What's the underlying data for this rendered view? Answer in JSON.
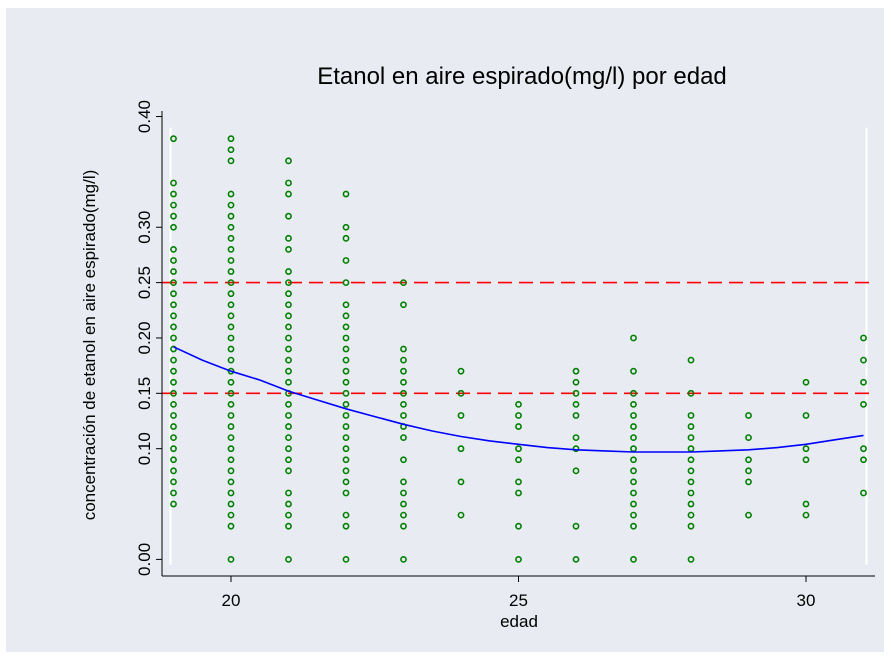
{
  "chart_data": {
    "type": "scatter",
    "title": "Etanol en aire espirado(mg/l) por edad",
    "xlabel": "edad",
    "ylabel": "concentración de etanol en aire espirado(mg/l)",
    "xlim": [
      18.8,
      31.2
    ],
    "ylim": [
      -0.015,
      0.405
    ],
    "x_ticks": [
      20,
      25,
      30
    ],
    "x_tick_labels": [
      "20",
      "25",
      "30"
    ],
    "y_ticks": [
      0,
      0.1,
      0.15,
      0.2,
      0.25,
      0.3,
      0.4
    ],
    "y_tick_labels": [
      "0.00",
      "0.10",
      "0.15",
      "0.20",
      "0.25",
      "0.30",
      "0.40"
    ],
    "grid": false,
    "colors": {
      "background": "#e8ecf2",
      "plot_background": "#e8ecf2",
      "points": "#008000",
      "smooth_line": "#0000ff",
      "reference_lines": "#ff0000",
      "edge_lines": "#ffffff"
    },
    "reference_lines": [
      {
        "y": 0.25,
        "style": "dashed"
      },
      {
        "y": 0.15,
        "style": "dashed"
      }
    ],
    "points": [
      {
        "x": 19,
        "y": [
          0.38,
          0.34,
          0.33,
          0.32,
          0.31,
          0.3,
          0.28,
          0.27,
          0.26,
          0.25,
          0.24,
          0.23,
          0.22,
          0.21,
          0.2,
          0.19,
          0.18,
          0.17,
          0.16,
          0.15,
          0.14,
          0.13,
          0.12,
          0.11,
          0.1,
          0.09,
          0.08,
          0.07,
          0.06,
          0.05
        ]
      },
      {
        "x": 20,
        "y": [
          0.38,
          0.37,
          0.36,
          0.33,
          0.32,
          0.31,
          0.3,
          0.29,
          0.28,
          0.27,
          0.26,
          0.25,
          0.24,
          0.23,
          0.22,
          0.21,
          0.2,
          0.19,
          0.18,
          0.17,
          0.16,
          0.15,
          0.14,
          0.13,
          0.12,
          0.11,
          0.1,
          0.09,
          0.08,
          0.07,
          0.06,
          0.05,
          0.04,
          0.03,
          0
        ]
      },
      {
        "x": 21,
        "y": [
          0.36,
          0.34,
          0.33,
          0.31,
          0.29,
          0.28,
          0.26,
          0.25,
          0.24,
          0.23,
          0.22,
          0.21,
          0.2,
          0.19,
          0.18,
          0.17,
          0.16,
          0.15,
          0.14,
          0.13,
          0.12,
          0.11,
          0.1,
          0.09,
          0.08,
          0.06,
          0.05,
          0.04,
          0.03,
          0
        ]
      },
      {
        "x": 22,
        "y": [
          0.33,
          0.3,
          0.29,
          0.27,
          0.25,
          0.23,
          0.22,
          0.21,
          0.2,
          0.19,
          0.18,
          0.17,
          0.16,
          0.15,
          0.14,
          0.13,
          0.12,
          0.11,
          0.1,
          0.09,
          0.08,
          0.07,
          0.06,
          0.04,
          0.03,
          0
        ]
      },
      {
        "x": 23,
        "y": [
          0.25,
          0.23,
          0.19,
          0.18,
          0.17,
          0.16,
          0.15,
          0.14,
          0.13,
          0.12,
          0.11,
          0.09,
          0.07,
          0.06,
          0.05,
          0.04,
          0.03,
          0
        ]
      },
      {
        "x": 24,
        "y": [
          0.17,
          0.15,
          0.13,
          0.1,
          0.07,
          0.04
        ]
      },
      {
        "x": 25,
        "y": [
          0.14,
          0.13,
          0.12,
          0.1,
          0.09,
          0.07,
          0.06,
          0.03,
          0
        ]
      },
      {
        "x": 26,
        "y": [
          0.17,
          0.16,
          0.15,
          0.14,
          0.13,
          0.11,
          0.1,
          0.08,
          0.03,
          0
        ]
      },
      {
        "x": 27,
        "y": [
          0.2,
          0.17,
          0.15,
          0.14,
          0.13,
          0.12,
          0.11,
          0.1,
          0.09,
          0.08,
          0.07,
          0.06,
          0.05,
          0.04,
          0.03,
          0
        ]
      },
      {
        "x": 28,
        "y": [
          0.18,
          0.15,
          0.13,
          0.12,
          0.11,
          0.1,
          0.09,
          0.08,
          0.07,
          0.06,
          0.05,
          0.04,
          0.03,
          0
        ]
      },
      {
        "x": 29,
        "y": [
          0.13,
          0.11,
          0.09,
          0.08,
          0.07,
          0.04
        ]
      },
      {
        "x": 30,
        "y": [
          0.16,
          0.13,
          0.1,
          0.09,
          0.05,
          0.04
        ]
      },
      {
        "x": 31,
        "y": [
          0.2,
          0.18,
          0.16,
          0.14,
          0.1,
          0.09,
          0.06
        ]
      }
    ],
    "smooth": {
      "name": "",
      "x": [
        19,
        19.5,
        20,
        20.5,
        21,
        21.5,
        22,
        22.5,
        23,
        23.5,
        24,
        24.5,
        25,
        25.5,
        26,
        26.5,
        27,
        27.5,
        28,
        28.5,
        29,
        29.5,
        30,
        30.5,
        31
      ],
      "y": [
        0.192,
        0.18,
        0.17,
        0.162,
        0.152,
        0.144,
        0.136,
        0.129,
        0.122,
        0.116,
        0.111,
        0.107,
        0.104,
        0.101,
        0.099,
        0.098,
        0.097,
        0.097,
        0.097,
        0.098,
        0.099,
        0.101,
        0.104,
        0.108,
        0.112
      ]
    }
  }
}
